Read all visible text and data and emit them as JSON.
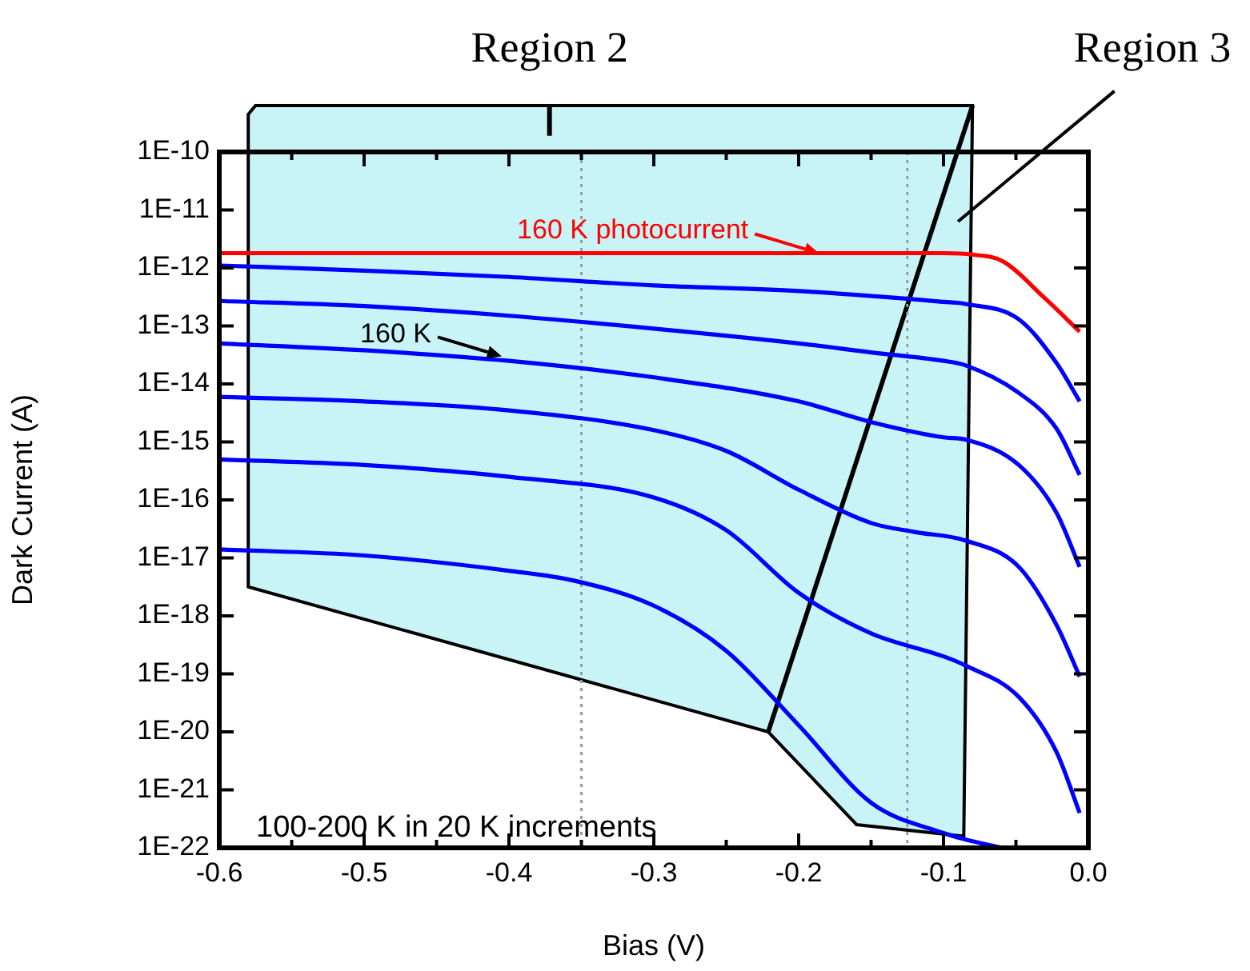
{
  "chart_data": {
    "type": "line",
    "xlabel": "Bias (V)",
    "ylabel": "Dark Current (A)",
    "log": "y",
    "xlim": [
      -0.6,
      0.0
    ],
    "ylim": [
      1e-22,
      1e-10
    ],
    "xticks": [
      {
        "value": -0.6,
        "label": "-0.6"
      },
      {
        "value": -0.55,
        "label": null
      },
      {
        "value": -0.5,
        "label": "-0.5"
      },
      {
        "value": -0.45,
        "label": null
      },
      {
        "value": -0.4,
        "label": "-0.4"
      },
      {
        "value": -0.35,
        "label": null
      },
      {
        "value": -0.3,
        "label": "-0.3"
      },
      {
        "value": -0.25,
        "label": null
      },
      {
        "value": -0.2,
        "label": "-0.2"
      },
      {
        "value": -0.15,
        "label": null
      },
      {
        "value": -0.1,
        "label": "-0.1"
      },
      {
        "value": -0.05,
        "label": null
      },
      {
        "value": 0.0,
        "label": "0.0"
      }
    ],
    "yticks": [
      {
        "value": 1e-22,
        "label": "1E-22"
      },
      {
        "value": 1e-21,
        "label": "1E-21"
      },
      {
        "value": 1e-20,
        "label": "1E-20"
      },
      {
        "value": 1e-19,
        "label": "1E-19"
      },
      {
        "value": 1e-18,
        "label": "1E-18"
      },
      {
        "value": 1e-17,
        "label": "1E-17"
      },
      {
        "value": 1e-16,
        "label": "1E-16"
      },
      {
        "value": 1e-15,
        "label": "1E-15"
      },
      {
        "value": 1e-14,
        "label": "1E-14"
      },
      {
        "value": 1e-13,
        "label": "1E-13"
      },
      {
        "value": 1e-12,
        "label": "1E-12"
      },
      {
        "value": 1e-11,
        "label": "1E-11"
      },
      {
        "value": 1e-10,
        "label": "1E-10"
      }
    ],
    "grid": false,
    "legend": false,
    "marker": "none",
    "line_style": "solid",
    "series": [
      {
        "color": "#ff0000",
        "x": [
          -0.6,
          -0.5,
          -0.4,
          -0.3,
          -0.2,
          -0.1,
          -0.08,
          -0.059,
          -0.03,
          -0.006
        ],
        "values": [
          1.8e-12,
          1.8e-12,
          1.8e-12,
          1.8e-12,
          1.8e-12,
          1.8e-12,
          1.7e-12,
          1.3e-12,
          3e-13,
          8e-14
        ]
      },
      {
        "color": "#0000ff",
        "x": [
          -0.6,
          -0.5,
          -0.4,
          -0.3,
          -0.2,
          -0.1,
          -0.085,
          -0.048,
          -0.022,
          -0.006
        ],
        "values": [
          1.1e-12,
          9e-13,
          7e-13,
          5e-13,
          4e-13,
          2.6e-13,
          2.4e-13,
          1.3e-13,
          2.3e-14,
          5e-15
        ]
      },
      {
        "color": "#0000ff",
        "x": [
          -0.6,
          -0.5,
          -0.4,
          -0.3,
          -0.2,
          -0.15,
          -0.1,
          -0.085,
          -0.048,
          -0.022,
          -0.006
        ],
        "values": [
          2.7e-13,
          2.2e-13,
          1.5e-13,
          9e-14,
          5e-14,
          3.5e-14,
          2.5e-14,
          2.1e-14,
          7e-15,
          1.7e-15,
          2.7e-16
        ]
      },
      {
        "color": "#0000ff",
        "x": [
          -0.6,
          -0.5,
          -0.4,
          -0.3,
          -0.2,
          -0.15,
          -0.1,
          -0.085,
          -0.048,
          -0.022,
          -0.006
        ],
        "values": [
          5e-14,
          3.8e-14,
          2.5e-14,
          1.3e-14,
          5e-15,
          2.2e-15,
          1.2e-15,
          1.1e-15,
          4e-16,
          6e-17,
          7e-18
        ]
      },
      {
        "color": "#0000ff",
        "x": [
          -0.6,
          -0.5,
          -0.4,
          -0.3,
          -0.25,
          -0.2,
          -0.15,
          -0.12,
          -0.085,
          -0.048,
          -0.022,
          -0.006
        ],
        "values": [
          6e-15,
          5e-15,
          3.5e-15,
          1.6e-15,
          7e-16,
          1.5e-16,
          4e-17,
          2.8e-17,
          2e-17,
          7e-18,
          7e-19,
          9e-20
        ]
      },
      {
        "color": "#0000ff",
        "x": [
          -0.6,
          -0.5,
          -0.4,
          -0.3,
          -0.25,
          -0.2,
          -0.15,
          -0.1,
          -0.085,
          -0.048,
          -0.022,
          -0.006
        ],
        "values": [
          5e-16,
          4e-16,
          2.5e-16,
          1.1e-16,
          3e-17,
          2.5e-18,
          5e-19,
          2e-19,
          1.4e-19,
          4e-20,
          4.5e-21,
          4e-22
        ]
      },
      {
        "color": "#0000ff",
        "x": [
          -0.6,
          -0.5,
          -0.4,
          -0.354,
          -0.3,
          -0.25,
          -0.2,
          -0.15,
          -0.1,
          -0.085,
          -0.06
        ],
        "values": [
          1.4e-17,
          1.1e-17,
          6e-18,
          4e-18,
          1.5e-18,
          2.5e-19,
          1.3e-20,
          6e-22,
          1.8e-22,
          1.4e-22,
          1e-22
        ]
      }
    ],
    "ref_lines": [
      {
        "axis": "x",
        "value": -0.35,
        "color": "#9a9a9a",
        "line_style": "dotted"
      },
      {
        "axis": "x",
        "value": -0.125,
        "color": "#9a9a9a",
        "line_style": "dotted"
      }
    ],
    "annotations": [
      "Region 2",
      "Region 3",
      "100-200 K in 20 K increments",
      {
        "text": "160 K photocurrent",
        "x": -0.186,
        "y": 1.8e-12
      },
      {
        "text": "160 K",
        "x": -0.405,
        "y": 3e-14
      }
    ]
  }
}
